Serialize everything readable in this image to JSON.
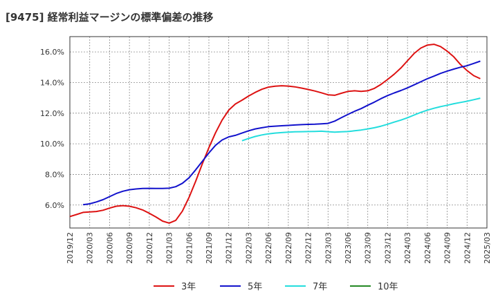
{
  "chart_data": {
    "type": "line",
    "title": "[9475]  経常利益マージンの標準偏差の推移",
    "xlabel": "",
    "ylabel": "",
    "x_ticks": [
      "2019/12",
      "2020/03",
      "2020/06",
      "2020/09",
      "2020/12",
      "2021/03",
      "2021/06",
      "2021/09",
      "2021/12",
      "2022/03",
      "2022/06",
      "2022/09",
      "2022/12",
      "2023/03",
      "2023/06",
      "2023/09",
      "2023/12",
      "2024/03",
      "2024/06",
      "2024/09",
      "2024/12",
      "2025/03"
    ],
    "y_ticks": [
      "6.0%",
      "8.0%",
      "10.0%",
      "12.0%",
      "14.0%",
      "16.0%"
    ],
    "ylim": [
      4.5,
      17.0
    ],
    "grid": true,
    "legend_position": "bottom",
    "series": [
      {
        "name": "3年",
        "color": "#dd1111",
        "points": [
          [
            "2019/12",
            5.25
          ],
          [
            "2020/01",
            5.38
          ],
          [
            "2020/02",
            5.52
          ],
          [
            "2020/03",
            5.55
          ],
          [
            "2020/04",
            5.58
          ],
          [
            "2020/05",
            5.66
          ],
          [
            "2020/06",
            5.8
          ],
          [
            "2020/07",
            5.92
          ],
          [
            "2020/08",
            5.96
          ],
          [
            "2020/09",
            5.92
          ],
          [
            "2020/10",
            5.82
          ],
          [
            "2020/11",
            5.68
          ],
          [
            "2020/12",
            5.46
          ],
          [
            "2021/01",
            5.22
          ],
          [
            "2021/02",
            4.95
          ],
          [
            "2021/03",
            4.82
          ],
          [
            "2021/04",
            5.0
          ],
          [
            "2021/05",
            5.6
          ],
          [
            "2021/06",
            6.5
          ],
          [
            "2021/07",
            7.55
          ],
          [
            "2021/08",
            8.68
          ],
          [
            "2021/09",
            9.75
          ],
          [
            "2021/10",
            10.72
          ],
          [
            "2021/11",
            11.55
          ],
          [
            "2021/12",
            12.2
          ],
          [
            "2022/01",
            12.6
          ],
          [
            "2022/02",
            12.85
          ],
          [
            "2022/03",
            13.12
          ],
          [
            "2022/04",
            13.36
          ],
          [
            "2022/05",
            13.56
          ],
          [
            "2022/06",
            13.7
          ],
          [
            "2022/07",
            13.76
          ],
          [
            "2022/08",
            13.79
          ],
          [
            "2022/09",
            13.77
          ],
          [
            "2022/10",
            13.72
          ],
          [
            "2022/11",
            13.64
          ],
          [
            "2022/12",
            13.55
          ],
          [
            "2023/01",
            13.45
          ],
          [
            "2023/02",
            13.33
          ],
          [
            "2023/03",
            13.2
          ],
          [
            "2023/04",
            13.17
          ],
          [
            "2023/05",
            13.3
          ],
          [
            "2023/06",
            13.42
          ],
          [
            "2023/07",
            13.46
          ],
          [
            "2023/08",
            13.42
          ],
          [
            "2023/09",
            13.46
          ],
          [
            "2023/10",
            13.62
          ],
          [
            "2023/11",
            13.88
          ],
          [
            "2023/12",
            14.2
          ],
          [
            "2024/01",
            14.55
          ],
          [
            "2024/02",
            14.95
          ],
          [
            "2024/03",
            15.42
          ],
          [
            "2024/04",
            15.9
          ],
          [
            "2024/05",
            16.25
          ],
          [
            "2024/06",
            16.45
          ],
          [
            "2024/07",
            16.5
          ],
          [
            "2024/08",
            16.35
          ],
          [
            "2024/09",
            16.05
          ],
          [
            "2024/10",
            15.68
          ],
          [
            "2024/11",
            15.18
          ],
          [
            "2024/12",
            14.78
          ],
          [
            "2025/01",
            14.45
          ],
          [
            "2025/02",
            14.25
          ]
        ]
      },
      {
        "name": "5年",
        "color": "#1111cc",
        "points": [
          [
            "2020/02",
            6.02
          ],
          [
            "2020/03",
            6.08
          ],
          [
            "2020/04",
            6.2
          ],
          [
            "2020/05",
            6.35
          ],
          [
            "2020/06",
            6.55
          ],
          [
            "2020/07",
            6.75
          ],
          [
            "2020/08",
            6.9
          ],
          [
            "2020/09",
            7.0
          ],
          [
            "2020/10",
            7.05
          ],
          [
            "2020/11",
            7.08
          ],
          [
            "2020/12",
            7.09
          ],
          [
            "2021/01",
            7.08
          ],
          [
            "2021/02",
            7.08
          ],
          [
            "2021/03",
            7.1
          ],
          [
            "2021/04",
            7.2
          ],
          [
            "2021/05",
            7.42
          ],
          [
            "2021/06",
            7.78
          ],
          [
            "2021/07",
            8.3
          ],
          [
            "2021/08",
            8.85
          ],
          [
            "2021/09",
            9.4
          ],
          [
            "2021/10",
            9.9
          ],
          [
            "2021/11",
            10.25
          ],
          [
            "2021/12",
            10.45
          ],
          [
            "2022/01",
            10.55
          ],
          [
            "2022/02",
            10.7
          ],
          [
            "2022/03",
            10.85
          ],
          [
            "2022/04",
            10.97
          ],
          [
            "2022/05",
            11.05
          ],
          [
            "2022/06",
            11.12
          ],
          [
            "2022/07",
            11.15
          ],
          [
            "2022/08",
            11.18
          ],
          [
            "2022/09",
            11.2
          ],
          [
            "2022/10",
            11.23
          ],
          [
            "2022/11",
            11.25
          ],
          [
            "2022/12",
            11.27
          ],
          [
            "2023/01",
            11.28
          ],
          [
            "2023/02",
            11.3
          ],
          [
            "2023/03",
            11.33
          ],
          [
            "2023/04",
            11.48
          ],
          [
            "2023/05",
            11.7
          ],
          [
            "2023/06",
            11.92
          ],
          [
            "2023/07",
            12.12
          ],
          [
            "2023/08",
            12.3
          ],
          [
            "2023/09",
            12.52
          ],
          [
            "2023/10",
            12.72
          ],
          [
            "2023/11",
            12.95
          ],
          [
            "2023/12",
            13.15
          ],
          [
            "2024/01",
            13.32
          ],
          [
            "2024/02",
            13.48
          ],
          [
            "2024/03",
            13.65
          ],
          [
            "2024/04",
            13.85
          ],
          [
            "2024/05",
            14.05
          ],
          [
            "2024/06",
            14.25
          ],
          [
            "2024/07",
            14.42
          ],
          [
            "2024/08",
            14.6
          ],
          [
            "2024/09",
            14.75
          ],
          [
            "2024/10",
            14.88
          ],
          [
            "2024/11",
            15.0
          ],
          [
            "2024/12",
            15.1
          ],
          [
            "2025/01",
            15.25
          ],
          [
            "2025/02",
            15.4
          ]
        ]
      },
      {
        "name": "7年",
        "color": "#22dddd",
        "points": [
          [
            "2022/02",
            10.2
          ],
          [
            "2022/03",
            10.35
          ],
          [
            "2022/04",
            10.48
          ],
          [
            "2022/05",
            10.58
          ],
          [
            "2022/06",
            10.65
          ],
          [
            "2022/07",
            10.7
          ],
          [
            "2022/08",
            10.73
          ],
          [
            "2022/09",
            10.76
          ],
          [
            "2022/10",
            10.78
          ],
          [
            "2022/11",
            10.79
          ],
          [
            "2022/12",
            10.8
          ],
          [
            "2023/01",
            10.81
          ],
          [
            "2023/02",
            10.82
          ],
          [
            "2023/03",
            10.79
          ],
          [
            "2023/04",
            10.76
          ],
          [
            "2023/05",
            10.78
          ],
          [
            "2023/06",
            10.8
          ],
          [
            "2023/07",
            10.85
          ],
          [
            "2023/08",
            10.9
          ],
          [
            "2023/09",
            10.97
          ],
          [
            "2023/10",
            11.05
          ],
          [
            "2023/11",
            11.15
          ],
          [
            "2023/12",
            11.28
          ],
          [
            "2024/01",
            11.42
          ],
          [
            "2024/02",
            11.55
          ],
          [
            "2024/03",
            11.7
          ],
          [
            "2024/04",
            11.88
          ],
          [
            "2024/05",
            12.05
          ],
          [
            "2024/06",
            12.2
          ],
          [
            "2024/07",
            12.32
          ],
          [
            "2024/08",
            12.43
          ],
          [
            "2024/09",
            12.52
          ],
          [
            "2024/10",
            12.62
          ],
          [
            "2024/11",
            12.7
          ],
          [
            "2024/12",
            12.78
          ],
          [
            "2025/01",
            12.88
          ],
          [
            "2025/02",
            12.98
          ]
        ]
      },
      {
        "name": "10年",
        "color": "#228822",
        "points": []
      }
    ]
  }
}
